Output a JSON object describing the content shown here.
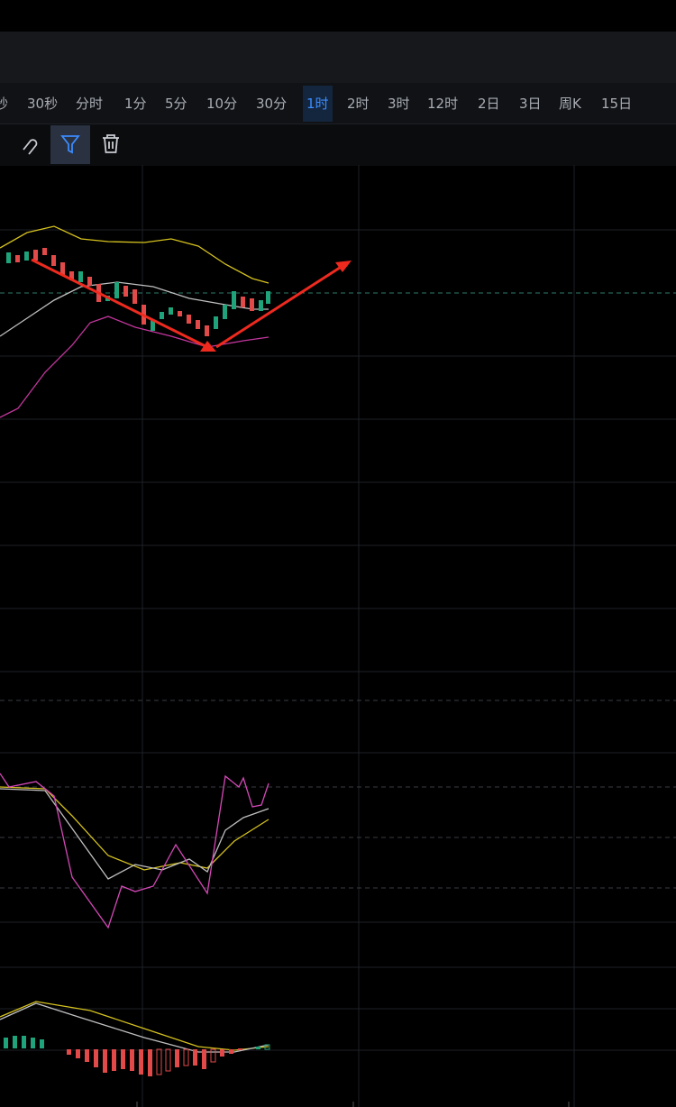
{
  "toolbar": {
    "intervals": [
      "秒",
      "30秒",
      "分时",
      "1分",
      "5分",
      "10分",
      "30分",
      "1时",
      "2时",
      "3时",
      "12时",
      "2日",
      "3日",
      "周K",
      "15日"
    ],
    "active_index": 7
  }
}
